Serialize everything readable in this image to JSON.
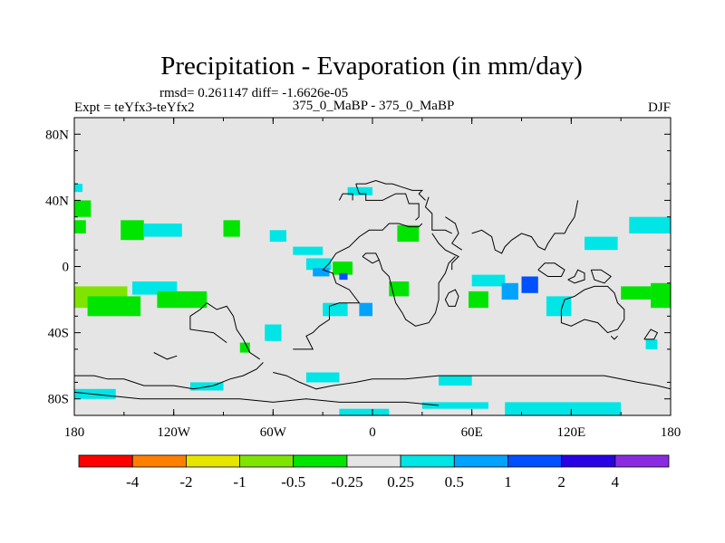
{
  "chart_data": {
    "type": "heatmap",
    "title": "Precipitation - Evaporation (in mm/day)",
    "stats": "rmsd= 0.261147 diff= -1.6626e-05",
    "left_label": "Expt = teYfx3-teYfx2",
    "center_label": "375_0_MaBP - 375_0_MaBP",
    "right_label": "DJF",
    "x_ticks": [
      {
        "value": -180,
        "label": "180"
      },
      {
        "value": -120,
        "label": "120W"
      },
      {
        "value": -60,
        "label": "60W"
      },
      {
        "value": 0,
        "label": "0"
      },
      {
        "value": 60,
        "label": "60E"
      },
      {
        "value": 120,
        "label": "120E"
      },
      {
        "value": 180,
        "label": "180"
      }
    ],
    "y_ticks": [
      {
        "value": 80,
        "label": "80N"
      },
      {
        "value": 40,
        "label": "40N"
      },
      {
        "value": 0,
        "label": "0"
      },
      {
        "value": -40,
        "label": "40S"
      },
      {
        "value": -80,
        "label": "80S"
      }
    ],
    "xlim": [
      -180,
      180
    ],
    "ylim": [
      -90,
      90
    ],
    "colorbar": {
      "colors": [
        "#ff0000",
        "#ff7f00",
        "#e5e500",
        "#7fe500",
        "#00e500",
        "#e5e5e5",
        "#00e5e5",
        "#00a3ff",
        "#0050ff",
        "#2a00e5",
        "#8a2be2"
      ],
      "labels": [
        "-4",
        "-2",
        "-1",
        "-0.5",
        "-0.25",
        "0.25",
        "0.5",
        "1",
        "2",
        "4"
      ]
    },
    "background_color": "#e5e5e5",
    "regions": [
      {
        "level": 4,
        "lon": [
          -180,
          -170
        ],
        "lat": [
          30,
          40
        ]
      },
      {
        "level": 4,
        "lon": [
          -180,
          -173
        ],
        "lat": [
          20,
          28
        ]
      },
      {
        "level": 6,
        "lon": [
          -180,
          -175
        ],
        "lat": [
          45,
          50
        ]
      },
      {
        "level": 4,
        "lon": [
          -152,
          -138
        ],
        "lat": [
          16,
          28
        ]
      },
      {
        "level": 6,
        "lon": [
          -138,
          -115
        ],
        "lat": [
          18,
          26
        ]
      },
      {
        "level": 4,
        "lon": [
          -90,
          -80
        ],
        "lat": [
          18,
          28
        ]
      },
      {
        "level": 6,
        "lon": [
          -62,
          -52
        ],
        "lat": [
          15,
          22
        ]
      },
      {
        "level": 6,
        "lon": [
          -48,
          -30
        ],
        "lat": [
          7,
          12
        ]
      },
      {
        "level": 3,
        "lon": [
          -180,
          -148
        ],
        "lat": [
          -25,
          -12
        ]
      },
      {
        "level": 4,
        "lon": [
          -172,
          -140
        ],
        "lat": [
          -30,
          -18
        ]
      },
      {
        "level": 6,
        "lon": [
          -145,
          -118
        ],
        "lat": [
          -17,
          -9
        ]
      },
      {
        "level": 4,
        "lon": [
          -130,
          -100
        ],
        "lat": [
          -25,
          -15
        ]
      },
      {
        "level": 6,
        "lon": [
          -40,
          -25
        ],
        "lat": [
          -2,
          5
        ]
      },
      {
        "level": 7,
        "lon": [
          -36,
          -26
        ],
        "lat": [
          -6,
          -1
        ]
      },
      {
        "level": 4,
        "lon": [
          -24,
          -12
        ],
        "lat": [
          -5,
          3
        ]
      },
      {
        "level": 8,
        "lon": [
          -20,
          -15
        ],
        "lat": [
          -8,
          -4
        ]
      },
      {
        "level": 6,
        "lon": [
          -15,
          0
        ],
        "lat": [
          43,
          48
        ]
      },
      {
        "level": 4,
        "lon": [
          15,
          28
        ],
        "lat": [
          15,
          25
        ]
      },
      {
        "level": 4,
        "lon": [
          10,
          22
        ],
        "lat": [
          -18,
          -9
        ]
      },
      {
        "level": 6,
        "lon": [
          -30,
          -15
        ],
        "lat": [
          -30,
          -22
        ]
      },
      {
        "level": 7,
        "lon": [
          -8,
          0
        ],
        "lat": [
          -30,
          -22
        ]
      },
      {
        "level": 6,
        "lon": [
          -65,
          -55
        ],
        "lat": [
          -45,
          -35
        ]
      },
      {
        "level": 6,
        "lon": [
          60,
          80
        ],
        "lat": [
          -12,
          -5
        ]
      },
      {
        "level": 7,
        "lon": [
          78,
          88
        ],
        "lat": [
          -20,
          -10
        ]
      },
      {
        "level": 8,
        "lon": [
          90,
          100
        ],
        "lat": [
          -16,
          -6
        ]
      },
      {
        "level": 4,
        "lon": [
          58,
          70
        ],
        "lat": [
          -25,
          -15
        ]
      },
      {
        "level": 6,
        "lon": [
          105,
          120
        ],
        "lat": [
          -30,
          -18
        ]
      },
      {
        "level": 6,
        "lon": [
          128,
          148
        ],
        "lat": [
          10,
          18
        ]
      },
      {
        "level": 6,
        "lon": [
          155,
          180
        ],
        "lat": [
          20,
          30
        ]
      },
      {
        "level": 4,
        "lon": [
          168,
          180
        ],
        "lat": [
          -25,
          -10
        ]
      },
      {
        "level": 4,
        "lon": [
          150,
          168
        ],
        "lat": [
          -20,
          -12
        ]
      },
      {
        "level": 6,
        "lon": [
          165,
          172
        ],
        "lat": [
          -50,
          -44
        ]
      },
      {
        "level": 4,
        "lon": [
          -80,
          -74
        ],
        "lat": [
          -52,
          -46
        ]
      },
      {
        "level": 6,
        "lon": [
          40,
          60
        ],
        "lat": [
          -72,
          -66
        ]
      },
      {
        "level": 6,
        "lon": [
          -40,
          -20
        ],
        "lat": [
          -70,
          -64
        ]
      },
      {
        "level": 6,
        "lon": [
          -110,
          -90
        ],
        "lat": [
          -75,
          -70
        ]
      },
      {
        "level": 6,
        "lon": [
          -180,
          -155
        ],
        "lat": [
          -80,
          -74
        ]
      },
      {
        "level": 6,
        "lon": [
          80,
          150
        ],
        "lat": [
          -90,
          -82
        ]
      },
      {
        "level": 6,
        "lon": [
          -20,
          10
        ],
        "lat": [
          -90,
          -86
        ]
      },
      {
        "level": 6,
        "lon": [
          30,
          70
        ],
        "lat": [
          -86,
          -82
        ]
      }
    ],
    "coastlines": [
      [
        [
          -10,
          50
        ],
        [
          -8,
          44
        ],
        [
          -4,
          44
        ],
        [
          -4,
          40
        ],
        [
          6,
          40
        ],
        [
          10,
          42
        ],
        [
          14,
          44
        ],
        [
          20,
          44
        ],
        [
          22,
          38
        ],
        [
          28,
          38
        ],
        [
          28,
          30
        ],
        [
          26,
          28
        ]
      ],
      [
        [
          -10,
          50
        ],
        [
          -4,
          50
        ],
        [
          2,
          52
        ],
        [
          8,
          50
        ],
        [
          12,
          50
        ],
        [
          18,
          48
        ],
        [
          24,
          46
        ],
        [
          30,
          46
        ],
        [
          28,
          44
        ],
        [
          32,
          40
        ]
      ],
      [
        [
          -20,
          40
        ],
        [
          -18,
          44
        ],
        [
          -12,
          44
        ],
        [
          -12,
          40
        ]
      ],
      [
        [
          34,
          42
        ],
        [
          32,
          36
        ],
        [
          36,
          32
        ],
        [
          36,
          22
        ],
        [
          44,
          22
        ],
        [
          48,
          20
        ]
      ],
      [
        [
          44,
          30
        ],
        [
          50,
          26
        ],
        [
          52,
          20
        ],
        [
          48,
          14
        ],
        [
          54,
          10
        ]
      ],
      [
        [
          36,
          20
        ],
        [
          40,
          14
        ],
        [
          44,
          10
        ],
        [
          52,
          6
        ],
        [
          48,
          2
        ],
        [
          48,
          -2
        ]
      ],
      [
        [
          -22,
          8
        ],
        [
          -14,
          12
        ],
        [
          -8,
          18
        ],
        [
          -2,
          22
        ],
        [
          6,
          22
        ],
        [
          10,
          26
        ],
        [
          16,
          26
        ],
        [
          22,
          24
        ],
        [
          28,
          24
        ],
        [
          30,
          26
        ]
      ],
      [
        [
          -22,
          8
        ],
        [
          -26,
          2
        ],
        [
          -30,
          -2
        ],
        [
          -24,
          -4
        ],
        [
          -22,
          -10
        ],
        [
          -14,
          -14
        ],
        [
          -8,
          -22
        ],
        [
          -20,
          -22
        ],
        [
          -26,
          -24
        ],
        [
          -26,
          -32
        ],
        [
          -32,
          -36
        ],
        [
          -36,
          -40
        ],
        [
          -40,
          -42
        ],
        [
          -36,
          -50
        ],
        [
          -48,
          -50
        ]
      ],
      [
        [
          -6,
          6
        ],
        [
          0,
          2
        ],
        [
          4,
          4
        ],
        [
          6,
          -2
        ],
        [
          10,
          -6
        ],
        [
          12,
          -14
        ],
        [
          14,
          -22
        ],
        [
          18,
          -28
        ],
        [
          20,
          -32
        ],
        [
          26,
          -36
        ],
        [
          34,
          -34
        ],
        [
          38,
          -28
        ],
        [
          40,
          -20
        ],
        [
          40,
          -10
        ],
        [
          44,
          -4
        ],
        [
          46,
          2
        ],
        [
          50,
          6
        ]
      ],
      [
        [
          4,
          4
        ],
        [
          2,
          8
        ],
        [
          -4,
          8
        ],
        [
          -6,
          6
        ]
      ],
      [
        [
          46,
          -16
        ],
        [
          50,
          -14
        ],
        [
          52,
          -18
        ],
        [
          50,
          -24
        ],
        [
          46,
          -24
        ],
        [
          44,
          -20
        ],
        [
          46,
          -16
        ]
      ],
      [
        [
          60,
          20
        ],
        [
          66,
          22
        ],
        [
          72,
          18
        ],
        [
          74,
          10
        ],
        [
          78,
          8
        ],
        [
          80,
          12
        ],
        [
          84,
          16
        ],
        [
          90,
          20
        ],
        [
          96,
          18
        ],
        [
          100,
          12
        ],
        [
          104,
          10
        ],
        [
          106,
          14
        ],
        [
          110,
          20
        ],
        [
          116,
          20
        ],
        [
          118,
          24
        ],
        [
          122,
          30
        ],
        [
          124,
          40
        ]
      ],
      [
        [
          100,
          -2
        ],
        [
          106,
          -6
        ],
        [
          114,
          -6
        ],
        [
          116,
          -2
        ],
        [
          110,
          2
        ],
        [
          104,
          2
        ],
        [
          100,
          -2
        ]
      ],
      [
        [
          118,
          -8
        ],
        [
          122,
          -6
        ],
        [
          124,
          -2
        ],
        [
          128,
          -4
        ],
        [
          128,
          -8
        ],
        [
          122,
          -10
        ],
        [
          118,
          -8
        ]
      ],
      [
        [
          132,
          -2
        ],
        [
          138,
          -2
        ],
        [
          144,
          -6
        ],
        [
          140,
          -10
        ],
        [
          134,
          -8
        ],
        [
          132,
          -2
        ]
      ],
      [
        [
          128,
          -14
        ],
        [
          134,
          -12
        ],
        [
          142,
          -12
        ],
        [
          146,
          -16
        ],
        [
          148,
          -22
        ],
        [
          152,
          -26
        ],
        [
          152,
          -32
        ],
        [
          148,
          -38
        ],
        [
          142,
          -40
        ],
        [
          136,
          -34
        ],
        [
          128,
          -32
        ],
        [
          120,
          -36
        ],
        [
          114,
          -34
        ],
        [
          114,
          -26
        ],
        [
          116,
          -20
        ],
        [
          122,
          -18
        ],
        [
          128,
          -14
        ]
      ],
      [
        [
          148,
          -42
        ],
        [
          146,
          -44
        ],
        [
          144,
          -42
        ]
      ],
      [
        [
          164,
          -44
        ],
        [
          170,
          -44
        ],
        [
          172,
          -40
        ],
        [
          168,
          -38
        ],
        [
          164,
          -44
        ]
      ],
      [
        [
          -100,
          -22
        ],
        [
          -94,
          -26
        ],
        [
          -88,
          -24
        ],
        [
          -84,
          -30
        ],
        [
          -82,
          -38
        ],
        [
          -78,
          -44
        ],
        [
          -74,
          -52
        ],
        [
          -68,
          -56
        ]
      ],
      [
        [
          -100,
          -22
        ],
        [
          -104,
          -26
        ],
        [
          -110,
          -30
        ],
        [
          -110,
          -38
        ],
        [
          -96,
          -40
        ],
        [
          -88,
          -46
        ]
      ],
      [
        [
          -132,
          -52
        ],
        [
          -124,
          -56
        ],
        [
          -118,
          -54
        ]
      ],
      [
        [
          -180,
          -66
        ],
        [
          -168,
          -66
        ],
        [
          -160,
          -68
        ],
        [
          -150,
          -68
        ],
        [
          -138,
          -72
        ],
        [
          -120,
          -72
        ],
        [
          -108,
          -74
        ],
        [
          -96,
          -72
        ],
        [
          -86,
          -68
        ],
        [
          -78,
          -66
        ],
        [
          -70,
          -62
        ],
        [
          -66,
          -58
        ]
      ],
      [
        [
          -60,
          -64
        ],
        [
          -52,
          -66
        ],
        [
          -44,
          -70
        ],
        [
          -34,
          -74
        ],
        [
          -24,
          -72
        ],
        [
          -10,
          -70
        ],
        [
          0,
          -68
        ],
        [
          20,
          -68
        ],
        [
          40,
          -66
        ],
        [
          60,
          -66
        ],
        [
          80,
          -66
        ],
        [
          100,
          -66
        ],
        [
          120,
          -66
        ],
        [
          140,
          -66
        ],
        [
          160,
          -70
        ],
        [
          172,
          -72
        ],
        [
          180,
          -74
        ]
      ],
      [
        [
          -180,
          -76
        ],
        [
          -160,
          -78
        ],
        [
          -140,
          -80
        ],
        [
          -110,
          -80
        ],
        [
          -80,
          -80
        ],
        [
          -60,
          -82
        ],
        [
          -40,
          -80
        ],
        [
          -20,
          -82
        ],
        [
          0,
          -82
        ],
        [
          20,
          -82
        ],
        [
          40,
          -84
        ]
      ]
    ]
  }
}
